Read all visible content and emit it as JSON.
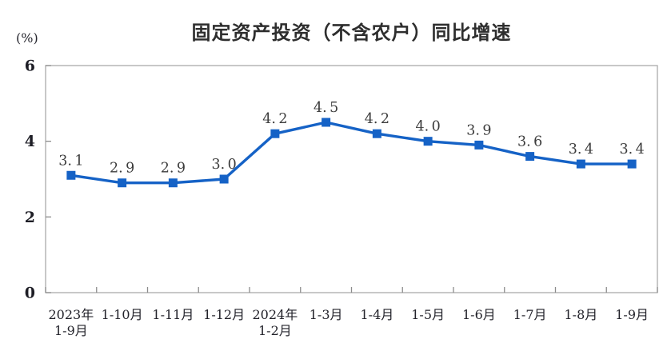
{
  "chart_data": {
    "type": "line",
    "title": "固定资产投资（不含农户）同比增速",
    "unit_label": "(%)",
    "categories": [
      [
        "2023年",
        "1-9月"
      ],
      [
        "1-10月"
      ],
      [
        "1-11月"
      ],
      [
        "1-12月"
      ],
      [
        "2024年",
        "1-2月"
      ],
      [
        "1-3月"
      ],
      [
        "1-4月"
      ],
      [
        "1-5月"
      ],
      [
        "1-6月"
      ],
      [
        "1-7月"
      ],
      [
        "1-8月"
      ],
      [
        "1-9月"
      ]
    ],
    "values": [
      3.1,
      2.9,
      2.9,
      3.0,
      4.2,
      4.5,
      4.2,
      4.0,
      3.9,
      3.6,
      3.4,
      3.4
    ],
    "ylim": [
      0,
      6
    ],
    "y_ticks": [
      0,
      2,
      4,
      6
    ],
    "grid": false,
    "legend": "none",
    "marker": "square",
    "colors": {
      "line": "#1562c6",
      "marker": "#1562c6",
      "data_label": "#3c3c3c",
      "axis_frame": "#ababab",
      "tick_mark": "#8c8c8c",
      "tick_text": "#1e1e26",
      "title_text": "#2e2e2e",
      "background": "#ffffff"
    }
  }
}
